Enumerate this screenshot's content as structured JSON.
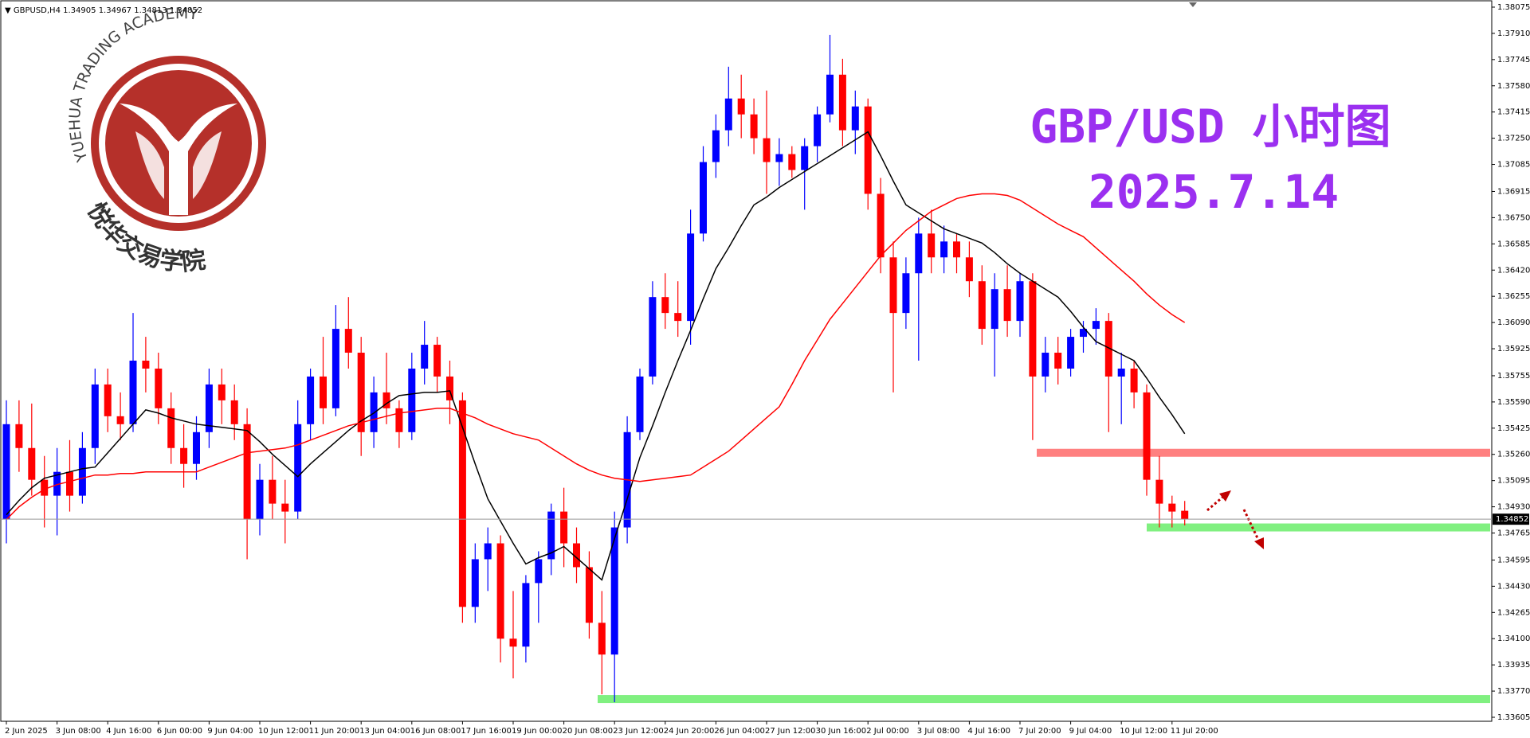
{
  "header": {
    "symbol": "GBPUSD,H4"
  },
  "logo": {
    "arc_text": "YUEHUA TRADING ACADEMY",
    "cn_text": "悦华交易学院"
  },
  "chart_data": {
    "type": "candlestick",
    "title": "GBP/USD 小时图",
    "subtitle": "2025.7.14",
    "categories": [
      "2 Jun 2025",
      null,
      null,
      null,
      "3 Jun 08:00",
      null,
      null,
      null,
      "4 Jun 16:00",
      null,
      null,
      null,
      "6 Jun 00:00",
      null,
      null,
      null,
      "9 Jun 04:00",
      null,
      null,
      null,
      "10 Jun 12:00",
      null,
      null,
      null,
      "11 Jun 20:00",
      null,
      null,
      null,
      "13 Jun 04:00",
      null,
      null,
      null,
      "16 Jun 08:00",
      null,
      null,
      null,
      "17 Jun 16:00",
      null,
      null,
      null,
      "19 Jun 00:00",
      null,
      null,
      null,
      "20 Jun 08:00",
      null,
      null,
      null,
      "23 Jun 12:00",
      null,
      null,
      null,
      "24 Jun 20:00",
      null,
      null,
      null,
      "26 Jun 04:00",
      null,
      null,
      null,
      "27 Jun 12:00",
      null,
      null,
      null,
      "30 Jun 16:00",
      null,
      null,
      null,
      "2 Jul 00:00",
      null,
      null,
      null,
      "3 Jul 08:00",
      null,
      null,
      null,
      "4 Jul 16:00",
      null,
      null,
      null,
      "7 Jul 20:00",
      null,
      null,
      null,
      "9 Jul 04:00",
      null,
      null,
      null,
      "10 Jul 12:00",
      null,
      null,
      null,
      "11 Jul 20:00",
      null
    ],
    "open": [
      1.3485,
      1.3545,
      1.353,
      1.351,
      1.35,
      1.3515,
      1.35,
      1.353,
      1.357,
      1.355,
      1.3545,
      1.3585,
      1.358,
      1.3555,
      1.353,
      1.352,
      1.354,
      1.357,
      1.356,
      1.3545,
      1.3485,
      1.351,
      1.3495,
      1.349,
      1.3545,
      1.3575,
      1.3555,
      1.3605,
      1.359,
      1.354,
      1.3565,
      1.3555,
      1.354,
      1.358,
      1.3595,
      1.3575,
      1.356,
      1.343,
      1.346,
      1.347,
      1.341,
      1.3405,
      1.3445,
      1.346,
      1.349,
      1.347,
      1.3455,
      1.342,
      1.34,
      1.348,
      1.354,
      1.3575,
      1.3625,
      1.3615,
      1.361,
      1.3665,
      1.371,
      1.373,
      1.375,
      1.374,
      1.3725,
      1.371,
      1.3715,
      1.3705,
      1.372,
      1.374,
      1.3765,
      1.373,
      1.3745,
      1.369,
      1.365,
      1.3615,
      1.364,
      1.3665,
      1.365,
      1.366,
      1.365,
      1.3635,
      1.3605,
      1.363,
      1.361,
      1.3635,
      1.3575,
      1.359,
      1.358,
      1.36,
      1.3605,
      1.361,
      1.3575,
      1.358,
      1.3565,
      1.351,
      1.3495,
      1.34905
    ],
    "high": [
      1.356,
      1.356,
      1.3558,
      1.3525,
      1.353,
      1.3535,
      1.354,
      1.358,
      1.358,
      1.3565,
      1.3615,
      1.36,
      1.359,
      1.3565,
      1.3545,
      1.355,
      1.358,
      1.358,
      1.357,
      1.3555,
      1.352,
      1.3525,
      1.351,
      1.356,
      1.358,
      1.36,
      1.362,
      1.3625,
      1.36,
      1.3575,
      1.359,
      1.356,
      1.359,
      1.361,
      1.36,
      1.3585,
      1.3565,
      1.347,
      1.348,
      1.3475,
      1.344,
      1.345,
      1.3465,
      1.3495,
      1.3505,
      1.348,
      1.3465,
      1.344,
      1.349,
      1.355,
      1.358,
      1.3635,
      1.364,
      1.3635,
      1.368,
      1.372,
      1.374,
      1.377,
      1.3765,
      1.375,
      1.3755,
      1.3725,
      1.372,
      1.3725,
      1.3745,
      1.379,
      1.3775,
      1.3755,
      1.375,
      1.37,
      1.366,
      1.365,
      1.3675,
      1.368,
      1.367,
      1.3665,
      1.366,
      1.3645,
      1.364,
      1.3645,
      1.364,
      1.364,
      1.36,
      1.36,
      1.3605,
      1.361,
      1.3618,
      1.3615,
      1.359,
      1.3585,
      1.357,
      1.3525,
      1.35,
      1.34967
    ],
    "low": [
      1.347,
      1.3515,
      1.35,
      1.348,
      1.3475,
      1.349,
      1.3495,
      1.352,
      1.354,
      1.3535,
      1.354,
      1.3565,
      1.3545,
      1.352,
      1.3505,
      1.351,
      1.353,
      1.3545,
      1.3535,
      1.346,
      1.3475,
      1.3485,
      1.347,
      1.3485,
      1.3535,
      1.3545,
      1.355,
      1.358,
      1.3525,
      1.353,
      1.3545,
      1.353,
      1.3535,
      1.357,
      1.3565,
      1.3545,
      1.342,
      1.342,
      1.344,
      1.3395,
      1.3385,
      1.3395,
      1.342,
      1.345,
      1.3455,
      1.3445,
      1.341,
      1.3375,
      1.337,
      1.347,
      1.3535,
      1.357,
      1.3605,
      1.36,
      1.3595,
      1.366,
      1.37,
      1.372,
      1.3725,
      1.3715,
      1.369,
      1.3695,
      1.37,
      1.368,
      1.371,
      1.3735,
      1.372,
      1.3715,
      1.368,
      1.364,
      1.3565,
      1.3605,
      1.3585,
      1.364,
      1.364,
      1.364,
      1.3625,
      1.3595,
      1.3575,
      1.36,
      1.36,
      1.3535,
      1.3565,
      1.357,
      1.3575,
      1.359,
      1.3595,
      1.354,
      1.3545,
      1.3555,
      1.35,
      1.348,
      1.348,
      1.34813
    ],
    "close": [
      1.3545,
      1.353,
      1.351,
      1.35,
      1.3515,
      1.35,
      1.353,
      1.357,
      1.355,
      1.3545,
      1.3585,
      1.358,
      1.3555,
      1.353,
      1.352,
      1.354,
      1.357,
      1.356,
      1.3545,
      1.3485,
      1.351,
      1.3495,
      1.349,
      1.3545,
      1.3575,
      1.3555,
      1.3605,
      1.359,
      1.354,
      1.3565,
      1.3555,
      1.354,
      1.358,
      1.3595,
      1.3575,
      1.356,
      1.343,
      1.346,
      1.347,
      1.341,
      1.3405,
      1.3445,
      1.346,
      1.349,
      1.347,
      1.3455,
      1.342,
      1.34,
      1.348,
      1.354,
      1.3575,
      1.3625,
      1.3615,
      1.361,
      1.3665,
      1.371,
      1.373,
      1.375,
      1.374,
      1.3725,
      1.371,
      1.3715,
      1.3705,
      1.372,
      1.374,
      1.3765,
      1.373,
      1.3745,
      1.369,
      1.365,
      1.3615,
      1.364,
      1.3665,
      1.365,
      1.366,
      1.365,
      1.3635,
      1.3605,
      1.363,
      1.361,
      1.3635,
      1.3575,
      1.359,
      1.358,
      1.36,
      1.3605,
      1.361,
      1.3575,
      1.358,
      1.3565,
      1.351,
      1.3495,
      1.349,
      1.34852
    ],
    "up_color": "#0000ff",
    "down_color": "#ff0000",
    "ma": [
      {
        "color": "#000000",
        "values": [
          1.3488,
          1.3497,
          1.3505,
          1.3511,
          1.3513,
          1.3515,
          1.3517,
          1.3518,
          1.3527,
          1.3536,
          1.3545,
          1.3554,
          1.3552,
          1.3549,
          1.3547,
          1.3545,
          1.3544,
          1.3543,
          1.3542,
          1.3541,
          1.3534,
          1.3526,
          1.3519,
          1.3512,
          1.352,
          1.3527,
          1.3534,
          1.3541,
          1.3547,
          1.3552,
          1.3558,
          1.3563,
          1.3564,
          1.3565,
          1.3565,
          1.3566,
          1.3543,
          1.352,
          1.3498,
          1.3484,
          1.347,
          1.3457,
          1.3461,
          1.3464,
          1.3468,
          1.3461,
          1.3454,
          1.3447,
          1.3473,
          1.3498,
          1.3524,
          1.3544,
          1.3565,
          1.3585,
          1.3604,
          1.3624,
          1.3643,
          1.3656,
          1.367,
          1.3683,
          1.3688,
          1.3694,
          1.3699,
          1.3704,
          1.3709,
          1.3714,
          1.3719,
          1.3724,
          1.3729,
          1.3714,
          1.3698,
          1.3683,
          1.3678,
          1.3673,
          1.3668,
          1.3665,
          1.3662,
          1.3659,
          1.3653,
          1.3646,
          1.364,
          1.3635,
          1.363,
          1.3625,
          1.3616,
          1.3606,
          1.3597,
          1.3593,
          1.3589,
          1.3585,
          1.3574,
          1.3562,
          1.3551,
          1.3539
        ]
      },
      {
        "color": "#ff0000",
        "values": [
          1.3485,
          1.3493,
          1.3499,
          1.3504,
          1.3507,
          1.3509,
          1.3511,
          1.3513,
          1.3513,
          1.3514,
          1.3514,
          1.3515,
          1.3515,
          1.3515,
          1.3515,
          1.3515,
          1.3518,
          1.3521,
          1.3524,
          1.3527,
          1.3528,
          1.3529,
          1.353,
          1.3532,
          1.3535,
          1.3538,
          1.3541,
          1.3544,
          1.3546,
          1.3548,
          1.355,
          1.3552,
          1.3553,
          1.3554,
          1.3555,
          1.3555,
          1.3552,
          1.3549,
          1.3545,
          1.3542,
          1.3539,
          1.3537,
          1.3535,
          1.353,
          1.3525,
          1.352,
          1.3516,
          1.3513,
          1.3511,
          1.351,
          1.3509,
          1.351,
          1.3511,
          1.3512,
          1.3513,
          1.3518,
          1.3523,
          1.3528,
          1.3535,
          1.3542,
          1.3549,
          1.3556,
          1.357,
          1.3585,
          1.3598,
          1.3611,
          1.3621,
          1.3631,
          1.3641,
          1.3651,
          1.3659,
          1.3667,
          1.3673,
          1.3679,
          1.3683,
          1.3687,
          1.3689,
          1.369,
          1.369,
          1.3689,
          1.3686,
          1.3681,
          1.3676,
          1.3671,
          1.3667,
          1.3663,
          1.3656,
          1.3649,
          1.3642,
          1.3635,
          1.3627,
          1.362,
          1.3614,
          1.3609
        ]
      }
    ],
    "levels": [
      {
        "value": 1.3527,
        "color": "#ff8080"
      },
      {
        "value": 1.348,
        "color": "#80f080"
      },
      {
        "value": 1.3372,
        "color": "#80f080"
      }
    ],
    "ylim": [
      1.3358,
      1.3812
    ],
    "yticks": [
      1.38075,
      {
        "value": 1.3791,
        "label": "1.37910"
      },
      1.37745,
      {
        "value": 1.3758,
        "label": "1.37580"
      },
      1.37415,
      {
        "value": 1.3725,
        "label": "1.37250"
      },
      1.37085,
      1.36915,
      {
        "value": 1.3675,
        "label": "1.36750"
      },
      1.36585,
      {
        "value": 1.3642,
        "label": "1.36420"
      },
      1.36255,
      {
        "value": 1.3609,
        "label": "1.36090"
      },
      1.35925,
      1.35755,
      {
        "value": 1.3559,
        "label": "1.35590"
      },
      1.35425,
      {
        "value": 1.3526,
        "label": "1.35260"
      },
      1.35095,
      {
        "value": 1.3493,
        "label": "1.34930"
      },
      1.34765,
      1.34595,
      {
        "value": 1.3443,
        "label": "1.34430"
      },
      1.34265,
      {
        "value": 1.341,
        "label": "1.34100"
      },
      1.33935,
      {
        "value": 1.3377,
        "label": "1.33770"
      },
      1.33605
    ],
    "grid": false
  }
}
